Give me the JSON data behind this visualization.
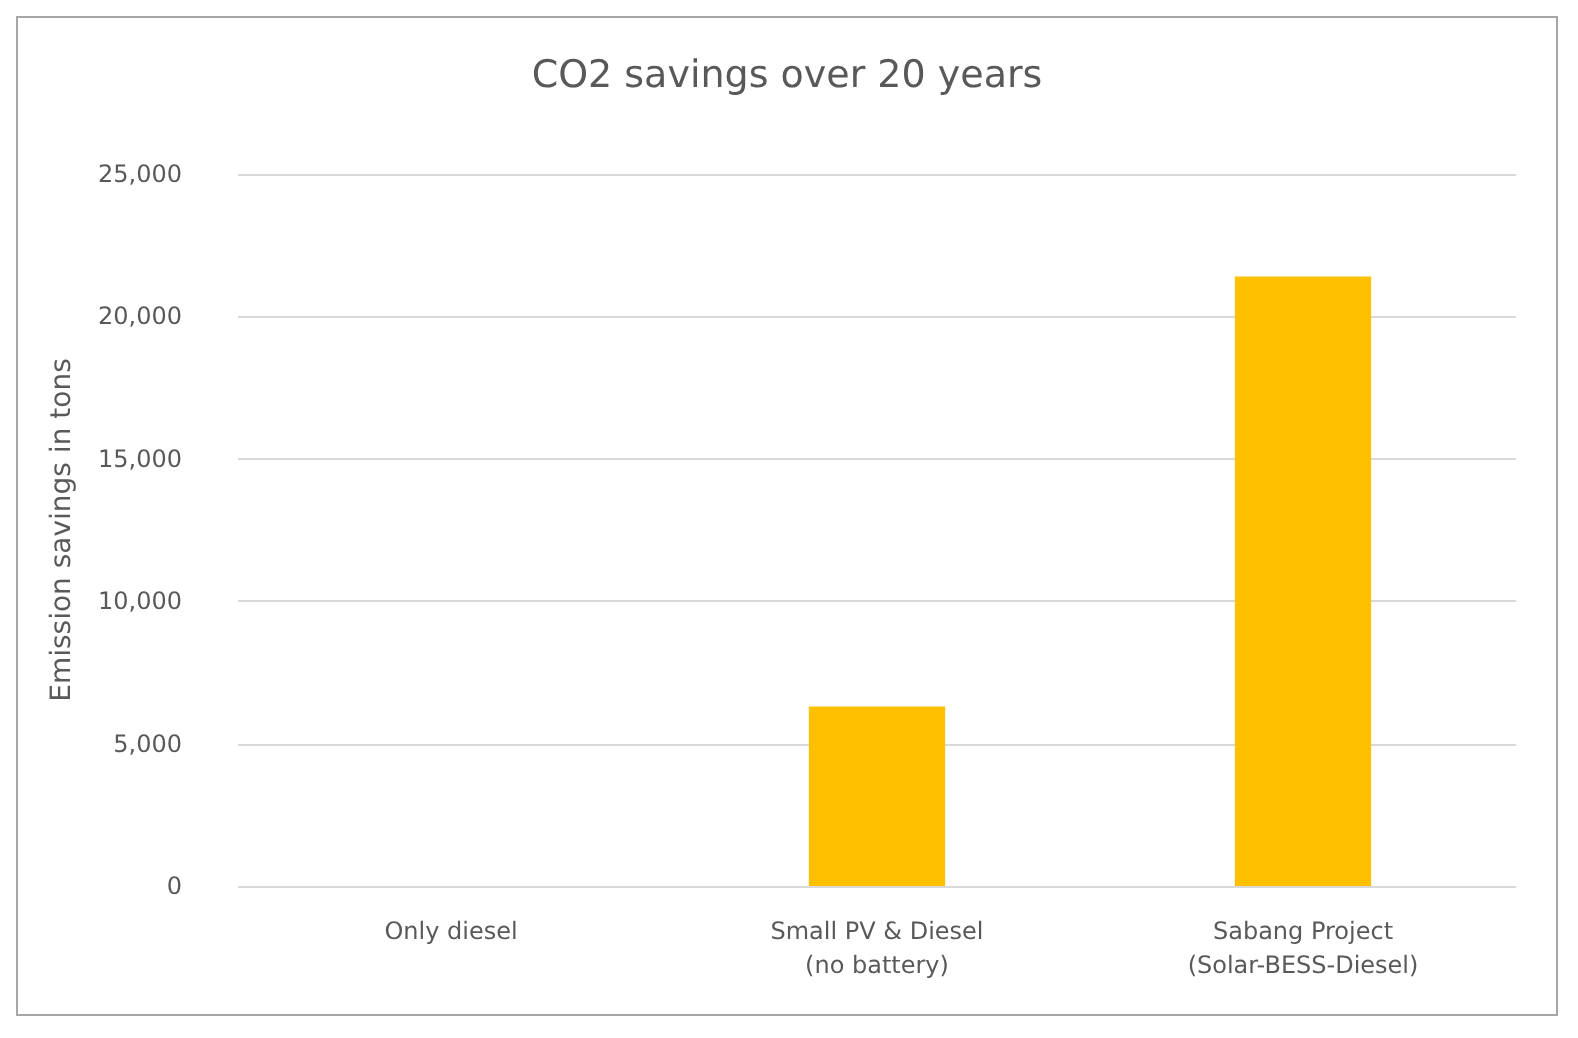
{
  "chart_data": {
    "type": "bar",
    "title": "CO2 savings over 20 years",
    "ylabel": "Emission savings in tons",
    "categories": [
      "Only diesel",
      "Small PV & Diesel\n(no battery)",
      "Sabang Project\n(Solar-BESS-Diesel)"
    ],
    "values": [
      0,
      6300,
      21400
    ],
    "color": "#ffc000",
    "ylim": [
      0,
      25000
    ],
    "yticks": [
      0,
      {
        "value": 5000,
        "label": "5,000"
      },
      {
        "value": 10000,
        "label": "10,000"
      },
      {
        "value": 15000,
        "label": "15,000"
      },
      {
        "value": 20000,
        "label": "20,000"
      },
      {
        "value": 25000,
        "label": "25,000"
      }
    ],
    "grid": "y"
  }
}
